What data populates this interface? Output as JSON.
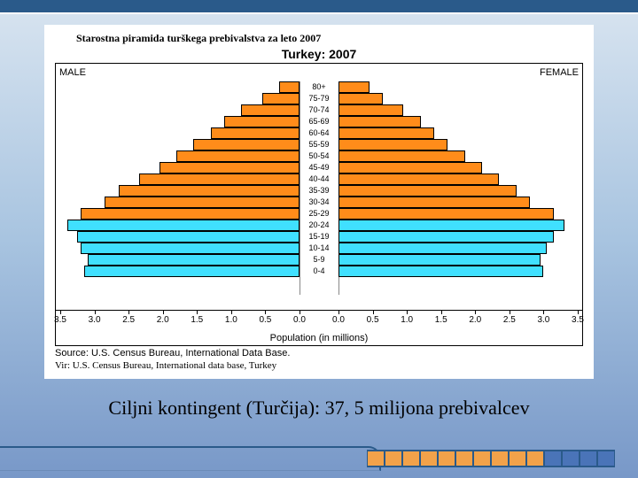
{
  "slide": {
    "caption_top": "Starostna piramida turškega prebivalstva za leto 2007",
    "chart_title": "Turkey: 2007",
    "male_label": "MALE",
    "female_label": "FEMALE",
    "x_axis_title": "Population (in millions)",
    "source_in_chart": "Source: U.S. Census Bureau, International Data Base.",
    "source_below": "Vir: U.S. Census Bureau, International data base, Turkey",
    "caption_main": "Ciljni kontingent (Turčija): 37, 5 milijona prebivalcev"
  },
  "pyramid": {
    "x_max": 3.5,
    "x_tick_step": 0.5,
    "colors": {
      "upper": "#ff8c1a",
      "lower": "#40e0ff",
      "border": "#000000",
      "grid": "#888888",
      "background": "#ffffff"
    },
    "split_index": 12,
    "cohorts": [
      {
        "label": "80+",
        "male": 0.3,
        "female": 0.45
      },
      {
        "label": "75-79",
        "male": 0.55,
        "female": 0.65
      },
      {
        "label": "70-74",
        "male": 0.85,
        "female": 0.95
      },
      {
        "label": "65-69",
        "male": 1.1,
        "female": 1.2
      },
      {
        "label": "60-64",
        "male": 1.3,
        "female": 1.4
      },
      {
        "label": "55-59",
        "male": 1.55,
        "female": 1.6
      },
      {
        "label": "50-54",
        "male": 1.8,
        "female": 1.85
      },
      {
        "label": "45-49",
        "male": 2.05,
        "female": 2.1
      },
      {
        "label": "40-44",
        "male": 2.35,
        "female": 2.35
      },
      {
        "label": "35-39",
        "male": 2.65,
        "female": 2.6
      },
      {
        "label": "30-34",
        "male": 2.85,
        "female": 2.8
      },
      {
        "label": "25-29",
        "male": 3.2,
        "female": 3.15
      },
      {
        "label": "20-24",
        "male": 3.4,
        "female": 3.3
      },
      {
        "label": "15-19",
        "male": 3.25,
        "female": 3.15
      },
      {
        "label": "10-14",
        "male": 3.2,
        "female": 3.05
      },
      {
        "label": "5-9",
        "male": 3.1,
        "female": 2.95
      },
      {
        "label": "0-4",
        "male": 3.15,
        "female": 3.0
      }
    ]
  },
  "deco": {
    "cells_orange": 10,
    "cells_blue": 4,
    "orange": "#f2a24a",
    "blue": "#4a74b8"
  }
}
